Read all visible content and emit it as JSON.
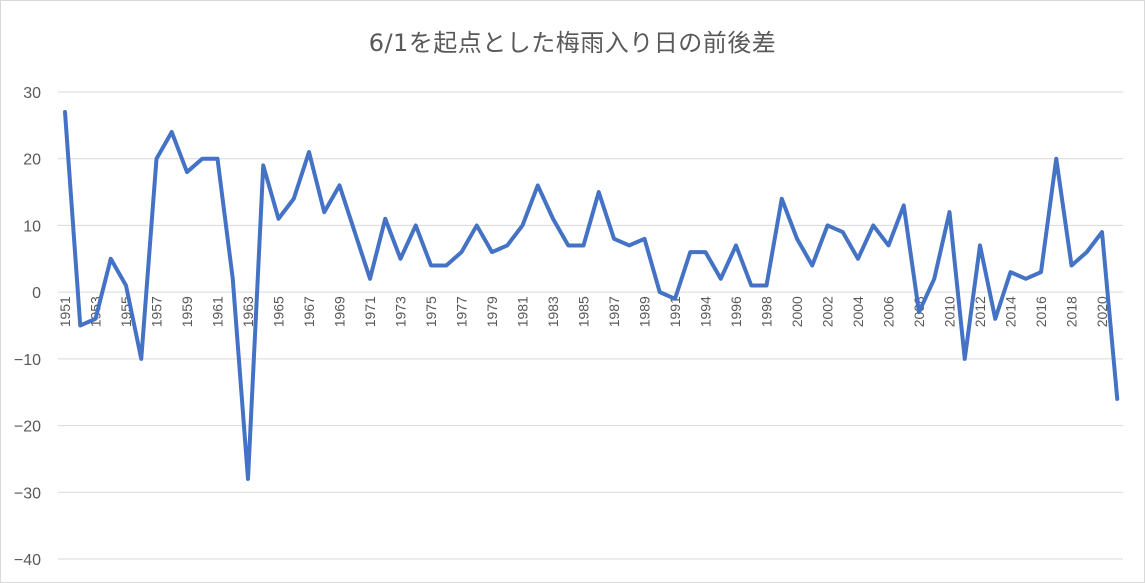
{
  "chart_data": {
    "type": "line",
    "title": "6/1を起点とした梅雨入り日の前後差",
    "xlabel": "",
    "ylabel": "",
    "ylim": [
      -40,
      30
    ],
    "yticks": [
      30,
      20,
      10,
      0,
      -10,
      -20,
      -30,
      -40
    ],
    "grid": true,
    "legend": "none",
    "colors": {
      "series": "#4472c4",
      "grid": "#d9d9d9",
      "text": "#595959"
    },
    "categories": [
      "1951",
      "1952",
      "1953",
      "1954",
      "1955",
      "1956",
      "1957",
      "1958",
      "1959",
      "1960",
      "1961",
      "1962",
      "1963",
      "1964",
      "1965",
      "1966",
      "1967",
      "1968",
      "1969",
      "1970",
      "1971",
      "1972",
      "1973",
      "1974",
      "1975",
      "1976",
      "1977",
      "1978",
      "1979",
      "1980",
      "1981",
      "1982",
      "1983",
      "1984",
      "1985",
      "1986",
      "1987",
      "1988",
      "1989",
      "1990",
      "1991",
      "1993",
      "1994",
      "1995",
      "1996",
      "1997",
      "1998",
      "1999",
      "2000",
      "2001",
      "2002",
      "2003",
      "2004",
      "2005",
      "2006",
      "2007",
      "2008",
      "2009",
      "2010",
      "2011",
      "2012",
      "2013",
      "2014",
      "2015",
      "2016",
      "2017",
      "2018",
      "2019",
      "2020",
      "2021"
    ],
    "tick_labels": [
      "1951",
      "",
      "1953",
      "",
      "1955",
      "",
      "1957",
      "",
      "1959",
      "",
      "1961",
      "",
      "1963",
      "",
      "1965",
      "",
      "1967",
      "",
      "1969",
      "",
      "1971",
      "",
      "1973",
      "",
      "1975",
      "",
      "1977",
      "",
      "1979",
      "",
      "1981",
      "",
      "1983",
      "",
      "1985",
      "",
      "1987",
      "",
      "1989",
      "",
      "1991",
      "",
      "1994",
      "",
      "1996",
      "",
      "1998",
      "",
      "2000",
      "",
      "2002",
      "",
      "2004",
      "",
      "2006",
      "",
      "2008",
      "",
      "2010",
      "",
      "2012",
      "",
      "2014",
      "",
      "2016",
      "",
      "2018",
      "",
      "2020",
      ""
    ],
    "series": [
      {
        "values": [
          27,
          -5,
          -4,
          5,
          1,
          -10,
          20,
          24,
          18,
          20,
          20,
          2,
          -28,
          19,
          11,
          14,
          21,
          12,
          16,
          9,
          2,
          11,
          5,
          10,
          4,
          4,
          6,
          10,
          6,
          7,
          10,
          16,
          11,
          7,
          7,
          15,
          8,
          7,
          8,
          0,
          -1,
          6,
          6,
          2,
          7,
          1,
          1,
          14,
          8,
          4,
          10,
          9,
          5,
          10,
          7,
          13,
          -3,
          2,
          12,
          -10,
          7,
          -4,
          3,
          2,
          3,
          20,
          4,
          6,
          9,
          -16
        ]
      }
    ]
  }
}
